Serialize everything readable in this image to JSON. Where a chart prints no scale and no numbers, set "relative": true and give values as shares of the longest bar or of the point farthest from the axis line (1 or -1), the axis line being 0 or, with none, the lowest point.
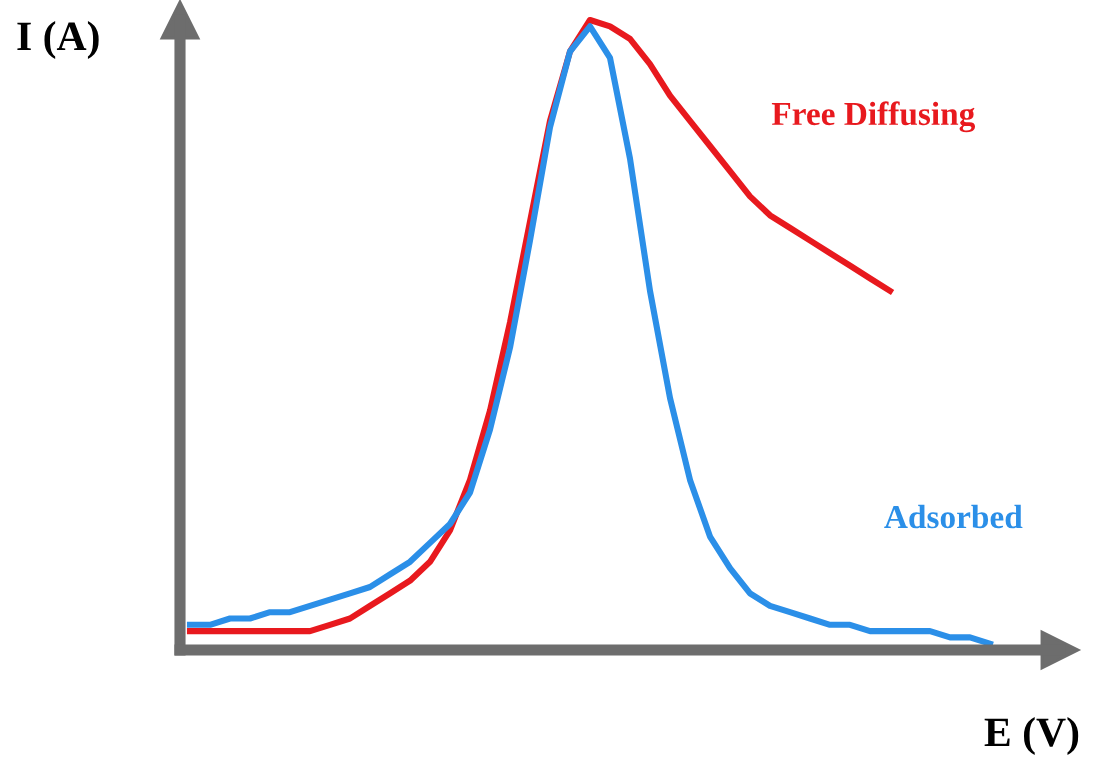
{
  "chart_data": {
    "type": "line",
    "relative": true,
    "xlabel": "E (V)",
    "ylabel": "I (A)",
    "legend": false,
    "categories": [
      null,
      null,
      null,
      null,
      null,
      null,
      null,
      null,
      null,
      null,
      null,
      null,
      null,
      null,
      null,
      null,
      null,
      null,
      null,
      null,
      null,
      null,
      null,
      null,
      null,
      null,
      null,
      null,
      null,
      null,
      null,
      null,
      null,
      null,
      null,
      null,
      null,
      null,
      null,
      null,
      null
    ],
    "series": [
      {
        "name": "Free Diffusing",
        "color": "#e8191e",
        "values": [
          0.03,
          0.03,
          0.03,
          0.03,
          0.03,
          0.03,
          0.03,
          0.04,
          0.05,
          0.07,
          0.09,
          0.11,
          0.14,
          0.19,
          0.27,
          0.38,
          0.52,
          0.68,
          0.84,
          0.95,
          1.0,
          0.99,
          0.97,
          0.93,
          0.88,
          0.84,
          0.8,
          0.76,
          0.72,
          0.69,
          0.67,
          0.65,
          0.63,
          0.61,
          0.59,
          0.57,
          null,
          null,
          null,
          null,
          null
        ]
      },
      {
        "name": "Adsorbed",
        "color": "#2b8fe8",
        "values": [
          0.04,
          0.04,
          0.05,
          0.05,
          0.06,
          0.06,
          0.07,
          0.08,
          0.09,
          0.1,
          0.12,
          0.14,
          0.17,
          0.2,
          0.25,
          0.35,
          0.48,
          0.65,
          0.83,
          0.95,
          0.99,
          0.94,
          0.78,
          0.57,
          0.4,
          0.27,
          0.18,
          0.13,
          0.09,
          0.07,
          0.06,
          0.05,
          0.04,
          0.04,
          0.03,
          0.03,
          0.03,
          0.03,
          0.02,
          0.02,
          0.01
        ]
      }
    ]
  }
}
